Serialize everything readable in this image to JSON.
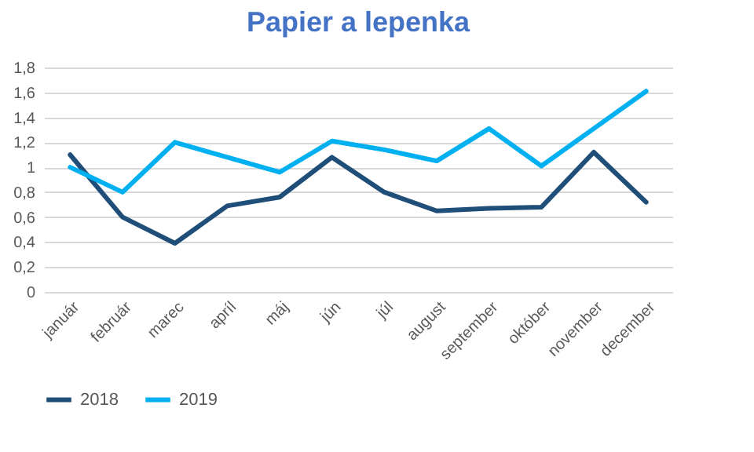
{
  "chart_data": {
    "type": "line",
    "title": "Papier a lepenka",
    "categories": [
      "január",
      "február",
      "marec",
      "apríl",
      "máj",
      "jún",
      "júl",
      "august",
      "september",
      "október",
      "november",
      "december"
    ],
    "series": [
      {
        "name": "2018",
        "color": "#1f4e79",
        "values": [
          1.1,
          0.6,
          0.39,
          0.69,
          0.76,
          1.08,
          0.8,
          0.65,
          0.67,
          0.68,
          1.12,
          0.72
        ]
      },
      {
        "name": "2019",
        "color": "#00b0f0",
        "values": [
          1.0,
          0.8,
          1.2,
          1.08,
          0.96,
          1.21,
          1.14,
          1.05,
          1.31,
          1.01,
          1.31,
          1.61
        ]
      }
    ],
    "ylim": [
      0,
      1.8
    ],
    "yticks": [
      0,
      {
        "value": 0.2,
        "label": "0,2"
      },
      {
        "value": 0.4,
        "label": "0,4"
      },
      {
        "value": 0.6,
        "label": "0,6"
      },
      {
        "value": 0.8,
        "label": "0,8"
      },
      1,
      {
        "value": 1.2,
        "label": "1,2"
      },
      {
        "value": 1.4,
        "label": "1,4"
      },
      {
        "value": 1.6,
        "label": "1,6"
      },
      {
        "value": 1.8,
        "label": "1,8"
      }
    ],
    "grid": "y",
    "legend": "bottom",
    "marker": "none",
    "line_style": "solid"
  }
}
